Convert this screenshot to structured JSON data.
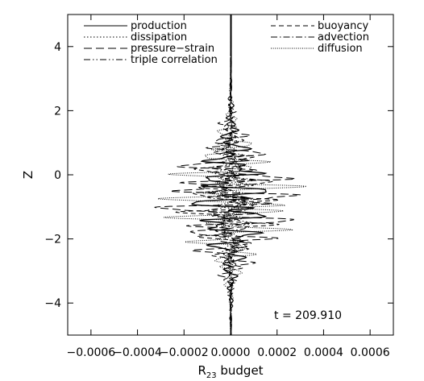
{
  "chart_data": {
    "type": "line",
    "title": "",
    "xlabel": "R",
    "xlabel_sub": "23",
    "xlabel_suffix": " budget",
    "ylabel": "Z",
    "xlim": [
      -0.0007,
      0.0007
    ],
    "ylim": [
      -5,
      5
    ],
    "xticks": [
      -0.0006,
      -0.0004,
      -0.0002,
      0,
      0.0002,
      0.0004,
      0.0006
    ],
    "xtick_labels": [
      "−0.0006",
      "−0.0004",
      "−0.0002",
      "0.0000",
      "0.0002",
      "0.0004",
      "0.0006"
    ],
    "yticks": [
      -4,
      -2,
      0,
      2,
      4
    ],
    "ytick_labels": [
      "−4",
      "−2",
      "0",
      "2",
      "4"
    ],
    "grid": false,
    "legend_placement": "top",
    "annotation": "t = 209.910",
    "series": [
      {
        "name": "production",
        "dash": "solid",
        "amp": 0.00018,
        "phase": 0.3
      },
      {
        "name": "dissipation",
        "dash": "dot",
        "amp": 5e-05,
        "phase": 1.1
      },
      {
        "name": "pressure−strain",
        "dash": "longdash",
        "amp": 0.00032,
        "phase": 2.0
      },
      {
        "name": "triple correlation",
        "dash": "dashdotdot",
        "amp": 0.0001,
        "phase": 2.7
      },
      {
        "name": "buoyancy",
        "dash": "dash",
        "amp": 0.0002,
        "phase": 3.4
      },
      {
        "name": "advection",
        "dash": "dashdot",
        "amp": 9e-05,
        "phase": 4.2
      },
      {
        "name": "diffusion",
        "dash": "densedot",
        "amp": 0.00028,
        "phase": 5.0
      }
    ]
  }
}
